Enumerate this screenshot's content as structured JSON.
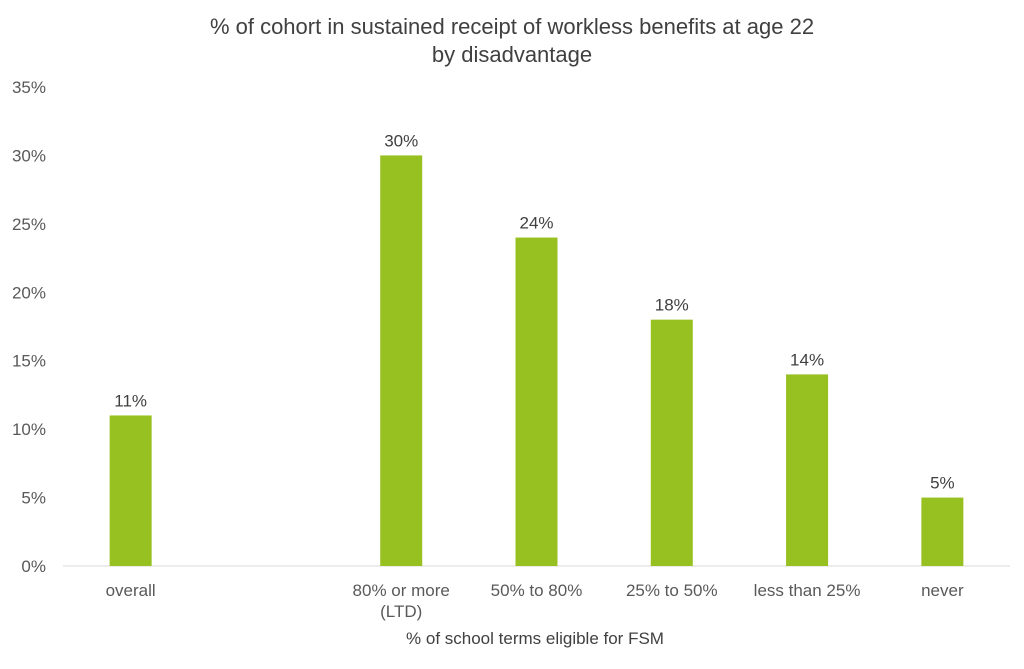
{
  "chart_data": {
    "type": "bar",
    "title": "% of cohort in sustained receipt of workless benefits at age 22",
    "subtitle": "by disadvantage",
    "xlabel": "% of school terms eligible for FSM",
    "ylabel": "",
    "ylim": [
      0,
      35
    ],
    "yticks": [
      "0%",
      "5%",
      "10%",
      "15%",
      "20%",
      "25%",
      "30%",
      "35%"
    ],
    "categories": [
      "overall",
      "",
      "80% or more",
      "50% to 80%",
      "25% to 50%",
      "less than 25%",
      "never"
    ],
    "category_sublabels": [
      "",
      "",
      "(LTD)",
      "",
      "",
      "",
      ""
    ],
    "values": [
      11,
      null,
      30,
      24,
      18,
      14,
      5
    ],
    "data_labels": [
      "11%",
      "",
      "30%",
      "24%",
      "18%",
      "14%",
      "5%"
    ],
    "bar_color": "#97C120",
    "grid": false,
    "legend": "none"
  }
}
